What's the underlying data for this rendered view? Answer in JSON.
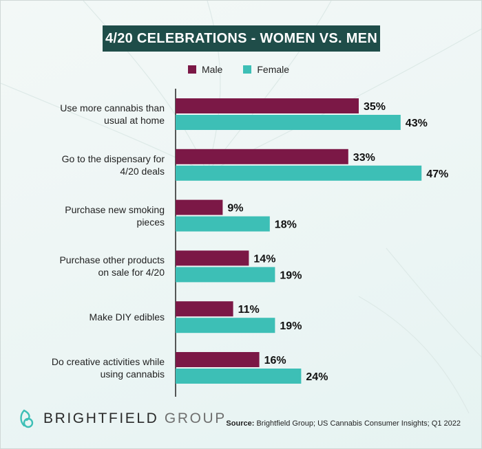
{
  "title": "4/20 CELEBRATIONS - WOMEN VS. MEN",
  "legend": [
    {
      "name": "Male",
      "color": "#7b1846"
    },
    {
      "name": "Female",
      "color": "#3dbfb6"
    }
  ],
  "chart_data": {
    "type": "bar",
    "orientation": "horizontal",
    "categories": [
      [
        "Use more cannabis than",
        "usual at home"
      ],
      [
        "Go to the dispensary for",
        "4/20 deals"
      ],
      [
        "Purchase new smoking",
        "pieces"
      ],
      [
        "Purchase other products",
        "on sale for 4/20"
      ],
      [
        "Make DIY edibles"
      ],
      [
        "Do creative activities while",
        "using cannabis"
      ]
    ],
    "series": [
      {
        "name": "Male",
        "color": "#7b1846",
        "values": [
          35,
          33,
          9,
          14,
          11,
          16
        ]
      },
      {
        "name": "Female",
        "color": "#3dbfb6",
        "values": [
          43,
          47,
          18,
          19,
          19,
          24
        ]
      }
    ],
    "value_suffix": "%",
    "xlim": [
      0,
      50
    ],
    "grid": false,
    "legend_position": "top"
  },
  "footer": {
    "brand_bold": "BRIGHTFIELD",
    "brand_light": "GROUP",
    "source_label": "Source:",
    "source_text": "Brightfield Group; US Cannabis Consumer Insights; Q1 2022"
  }
}
